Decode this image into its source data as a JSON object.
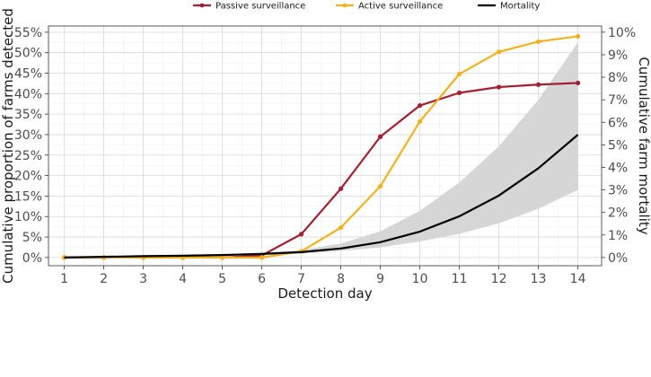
{
  "chart_data": {
    "type": "line",
    "xlabel": "Detection day",
    "ylabel_left": "Cumulative proportion of farms detected",
    "ylabel_right": "Cumulative farm mortality",
    "x": [
      1,
      2,
      3,
      4,
      5,
      6,
      7,
      8,
      9,
      10,
      11,
      12,
      13,
      14
    ],
    "xlim": [
      0.6,
      14.6
    ],
    "ylim_left": [
      -0.02,
      0.565
    ],
    "ylim_right": [
      -0.003636,
      0.102727
    ],
    "left_ticks": [
      0,
      0.05,
      0.1,
      0.15,
      0.2,
      0.25,
      0.3,
      0.35,
      0.4,
      0.45,
      0.5,
      0.55
    ],
    "left_tick_labels": [
      "0%",
      "5%",
      "10%",
      "15%",
      "20%",
      "25%",
      "30%",
      "35%",
      "40%",
      "45%",
      "50%",
      "55%"
    ],
    "right_ticks": [
      0,
      0.01,
      0.02,
      0.03,
      0.04,
      0.05,
      0.06,
      0.07,
      0.08,
      0.09,
      0.1
    ],
    "right_tick_labels": [
      "0%",
      "1%",
      "2%",
      "3%",
      "4%",
      "5%",
      "6%",
      "7%",
      "8%",
      "9%",
      "10%"
    ],
    "legend": [
      "Passive surveillance",
      "Active surveillance",
      "Mortality"
    ],
    "series": [
      {
        "name": "Passive surveillance",
        "color": "#a31f34",
        "axis": "left",
        "markers": true,
        "values": [
          0.0,
          0.0,
          0.0,
          0.0,
          0.0,
          0.005,
          0.057,
          0.168,
          0.295,
          0.371,
          0.402,
          0.416,
          0.422,
          0.426
        ]
      },
      {
        "name": "Active surveillance",
        "color": "#f2b21e",
        "axis": "left",
        "markers": true,
        "values": [
          0.0,
          0.0,
          0.0,
          0.0,
          0.0,
          0.0,
          0.015,
          0.073,
          0.174,
          0.332,
          0.448,
          0.502,
          0.527,
          0.54
        ]
      },
      {
        "name": "Mortality",
        "color": "#000000",
        "axis": "right",
        "markers": false,
        "values": [
          0.0,
          0.0003,
          0.0006,
          0.0008,
          0.0011,
          0.0016,
          0.0024,
          0.004,
          0.0068,
          0.0115,
          0.0183,
          0.0275,
          0.0396,
          0.0545
        ],
        "band_lower": [
          0.0,
          0.0002,
          0.0004,
          0.0006,
          0.0008,
          0.0012,
          0.0018,
          0.0029,
          0.0045,
          0.0071,
          0.0105,
          0.0152,
          0.0216,
          0.03
        ],
        "band_upper": [
          0.0,
          0.0004,
          0.0008,
          0.0011,
          0.0015,
          0.0021,
          0.0033,
          0.0062,
          0.0116,
          0.0207,
          0.0333,
          0.0494,
          0.07,
          0.0955
        ],
        "band_color": "#d6d6d6"
      }
    ]
  }
}
